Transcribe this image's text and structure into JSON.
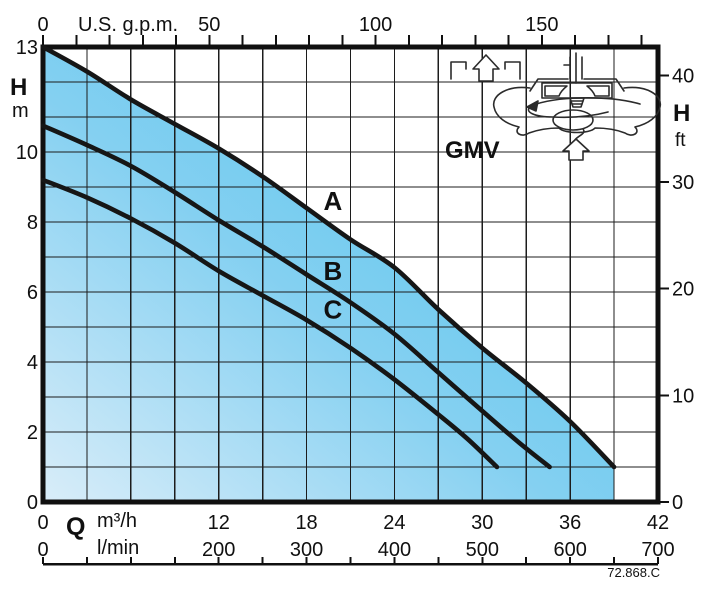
{
  "labels": {
    "pump_type": "GMV",
    "drawing_number": "72.868.C"
  },
  "chart_data": {
    "type": "line",
    "title": "GMV pump performance curves — head H versus flow Q",
    "curve_color": "#161616",
    "grid_color": "#1c1c1c",
    "border_color": "#101010",
    "text_color": "#101010",
    "fill_gradient": [
      "#d9edf9",
      "#84d0f1",
      "#47c0ed"
    ],
    "axes": {
      "top": {
        "unit": "U.S. g.p.m.",
        "min": 0,
        "max": 180,
        "tick_step": 10,
        "labeled_ticks": [
          0,
          50,
          100,
          150
        ]
      },
      "left": {
        "quantity": "H",
        "unit": "m",
        "min": 0,
        "max": 13,
        "grid_step": 1,
        "labeled_ticks": [
          13,
          10,
          8,
          6,
          4,
          2,
          0
        ]
      },
      "right": {
        "quantity": "H",
        "unit": "ft",
        "min": 0,
        "max": 40,
        "tick_step": 10,
        "labeled_ticks": [
          40,
          30,
          20,
          10,
          0
        ]
      },
      "bottom": {
        "quantity": "Q",
        "grid_step_m3h": 3,
        "ruler_tick_step_m3h": 3,
        "rows": [
          {
            "unit": "m³/h",
            "labels": [
              0,
              12,
              18,
              24,
              30,
              36,
              42
            ]
          },
          {
            "unit": "l/min",
            "labels": [
              0,
              200,
              300,
              400,
              500,
              600,
              700
            ]
          }
        ]
      }
    },
    "series": [
      {
        "name": "A",
        "points": [
          [
            0,
            13.0
          ],
          [
            3,
            12.3
          ],
          [
            6,
            11.5
          ],
          [
            9,
            10.8
          ],
          [
            12,
            10.1
          ],
          [
            15,
            9.3
          ],
          [
            18,
            8.4
          ],
          [
            21,
            7.5
          ],
          [
            24,
            6.7
          ],
          [
            27,
            5.5
          ],
          [
            30,
            4.4
          ],
          [
            33,
            3.4
          ],
          [
            36,
            2.3
          ],
          [
            39,
            1.0
          ]
        ],
        "label_pos": [
          19.8,
          8.6
        ]
      },
      {
        "name": "B",
        "points": [
          [
            0,
            10.75
          ],
          [
            3,
            10.2
          ],
          [
            6,
            9.6
          ],
          [
            9,
            8.85
          ],
          [
            12,
            8.05
          ],
          [
            15,
            7.3
          ],
          [
            18,
            6.5
          ],
          [
            21,
            5.7
          ],
          [
            24,
            4.8
          ],
          [
            27,
            3.7
          ],
          [
            30,
            2.6
          ],
          [
            32.5,
            1.7
          ],
          [
            34.6,
            1.0
          ]
        ],
        "label_pos": [
          19.8,
          6.6
        ]
      },
      {
        "name": "C",
        "points": [
          [
            0,
            9.2
          ],
          [
            3,
            8.7
          ],
          [
            6,
            8.1
          ],
          [
            9,
            7.4
          ],
          [
            12,
            6.6
          ],
          [
            15,
            5.9
          ],
          [
            18,
            5.2
          ],
          [
            21,
            4.4
          ],
          [
            24,
            3.5
          ],
          [
            27,
            2.5
          ],
          [
            29,
            1.8
          ],
          [
            31,
            1.0
          ]
        ],
        "label_pos": [
          19.8,
          5.5
        ]
      }
    ],
    "fill_under_series": "A"
  }
}
